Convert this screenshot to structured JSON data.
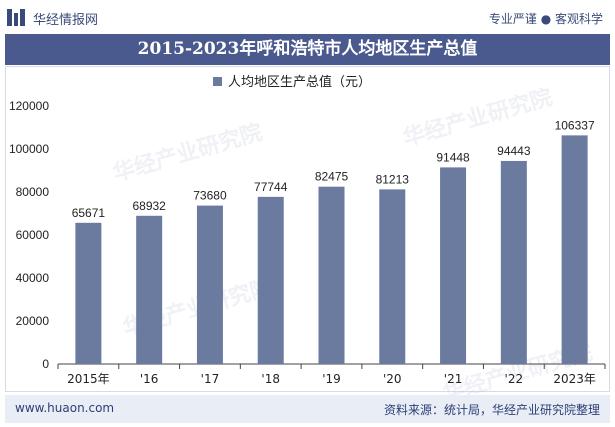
{
  "header": {
    "brand": "华经情报网",
    "tagline": "专业严谨 ● 客观科学"
  },
  "chart_data": {
    "type": "bar",
    "title": "2015-2023年呼和浩特市人均地区生产总值",
    "legend": "人均地区生产总值（元）",
    "legend_position": "top-center",
    "categories": [
      "2015年",
      "'16",
      "'17",
      "'18",
      "'19",
      "'20",
      "'21",
      "'22",
      "2023年"
    ],
    "series": [
      {
        "name": "人均地区生产总值（元）",
        "values": [
          65671,
          68932,
          73680,
          77744,
          82475,
          81213,
          91448,
          94443,
          106337
        ]
      }
    ],
    "ylim": [
      0,
      120000
    ],
    "yticks": [
      0,
      20000,
      40000,
      60000,
      80000,
      100000,
      120000
    ],
    "grid": false,
    "colors": {
      "bar": "#6b7a9f",
      "title_bg": "#4a5a8f"
    }
  },
  "footer": {
    "url": "www.huaon.com",
    "source": "资料来源：统计局，华经产业研究院整理"
  },
  "watermark": "华经产业研究院"
}
